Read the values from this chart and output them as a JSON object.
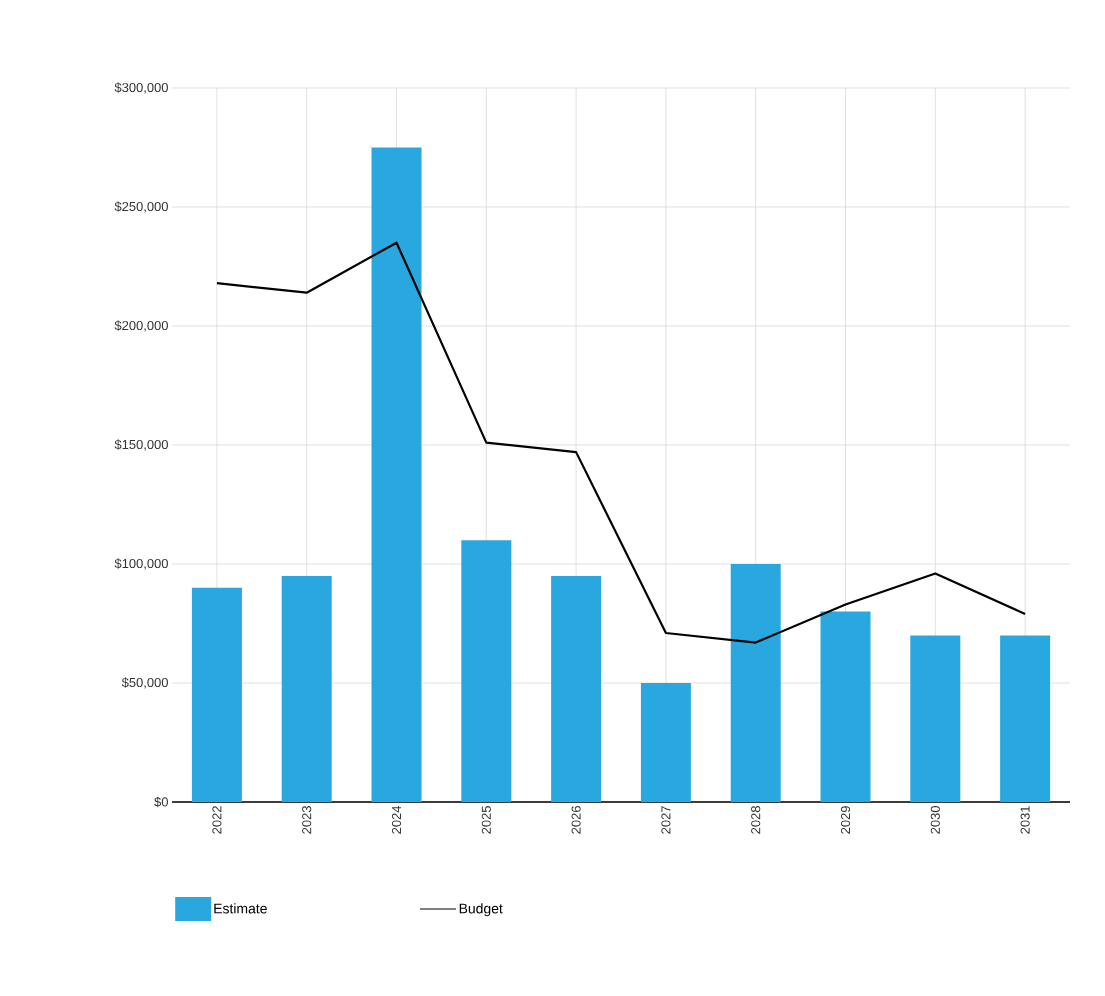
{
  "chart_data": {
    "type": "bar",
    "categories": [
      "2022",
      "2023",
      "2024",
      "2025",
      "2026",
      "2027",
      "2028",
      "2029",
      "2030",
      "2031"
    ],
    "series": [
      {
        "name": "Estimate",
        "color": "#29a8df",
        "values": [
          90000,
          95000,
          275000,
          110000,
          95000,
          50000,
          100000,
          80000,
          70000,
          70000
        ]
      },
      {
        "name": "Budget",
        "type": "line",
        "color": "#000000",
        "values": [
          218000,
          214000,
          235000,
          151000,
          147000,
          71000,
          67000,
          83000,
          96000,
          79000
        ]
      }
    ],
    "ylim": [
      0,
      300000
    ],
    "yticks": [
      {
        "value": 0,
        "label": "$0"
      },
      {
        "value": 50000,
        "label": "$50,000"
      },
      {
        "value": 100000,
        "label": "$100,000"
      },
      {
        "value": 150000,
        "label": "$150,000"
      },
      {
        "value": 200000,
        "label": "$200,000"
      },
      {
        "value": 250000,
        "label": "$250,000"
      },
      {
        "value": 300000,
        "label": "$300,000"
      }
    ],
    "grid": true,
    "legend": "bottom left",
    "marker": "none",
    "line_style": "solid"
  }
}
